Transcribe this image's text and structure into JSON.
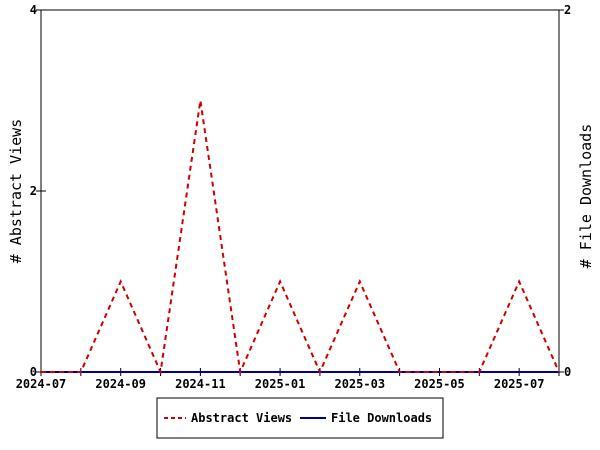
{
  "chart_data": {
    "type": "line",
    "ylabel_left": "# Abstract Views",
    "ylabel_right": "# File Downloads",
    "ylim_left": [
      0,
      4
    ],
    "ylim_right": [
      0,
      2
    ],
    "left_ticks": [
      "0",
      "2",
      "4"
    ],
    "right_ticks": [
      "0",
      "2"
    ],
    "xlim": [
      "2024-07",
      "2025-08"
    ],
    "x_ticks": [
      "2024-07",
      "2024-09",
      "2024-11",
      "2025-01",
      "2025-03",
      "2025-05",
      "2025-07"
    ],
    "grid": false,
    "legend_position": "bottom",
    "colors": {
      "abstract_views": "#cc0000",
      "file_downloads": "#000099"
    },
    "series": [
      {
        "name": "Abstract Views",
        "axis": "left",
        "style": "dashed",
        "color": "#cc0000",
        "x": [
          "2024-07",
          "2024-08",
          "2024-09",
          "2024-10",
          "2024-11",
          "2024-12",
          "2025-01",
          "2025-02",
          "2025-03",
          "2025-04",
          "2025-05",
          "2025-06",
          "2025-07",
          "2025-08"
        ],
        "values": [
          0,
          0,
          1,
          0,
          3,
          0,
          1,
          0,
          1,
          0,
          0,
          0,
          1,
          0
        ]
      },
      {
        "name": "File Downloads",
        "axis": "right",
        "style": "solid",
        "color": "#000099",
        "x": [
          "2024-07",
          "2024-08",
          "2024-09",
          "2024-10",
          "2024-11",
          "2024-12",
          "2025-01",
          "2025-02",
          "2025-03",
          "2025-04",
          "2025-05",
          "2025-06",
          "2025-07",
          "2025-08"
        ],
        "values": [
          0,
          0,
          0,
          0,
          0,
          0,
          0,
          0,
          0,
          0,
          0,
          0,
          0,
          0
        ]
      }
    ]
  }
}
